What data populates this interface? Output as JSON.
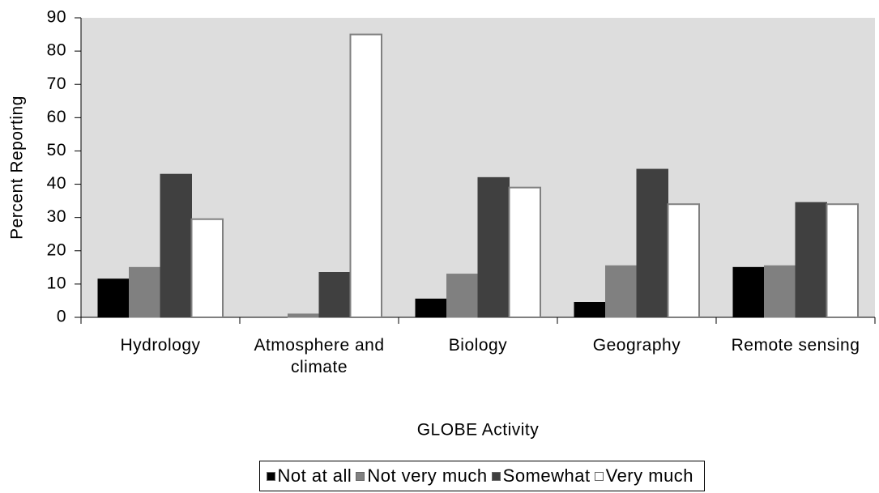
{
  "chart_data": {
    "type": "bar",
    "x_label": "GLOBE Activity",
    "y_label": "Percent Reporting",
    "categories": [
      "Hydrology",
      "Atmosphere and climate",
      "Biology",
      "Geography",
      "Remote sensing"
    ],
    "series": [
      {
        "name": "Not at all",
        "color": "#000000",
        "values": [
          11.5,
          0,
          5.5,
          4.5,
          15
        ]
      },
      {
        "name": "Not very much",
        "color": "#808080",
        "values": [
          15,
          1,
          13,
          15.5,
          15.5
        ]
      },
      {
        "name": "Somewhat",
        "color": "#404040",
        "values": [
          43,
          13.5,
          42,
          44.5,
          34.5
        ]
      },
      {
        "name": "Very much",
        "color": "#ffffff",
        "values": [
          29.5,
          85,
          39,
          34,
          34
        ]
      }
    ],
    "ylim": [
      0,
      90
    ],
    "yticks": [
      0,
      10,
      20,
      30,
      40,
      50,
      60,
      70,
      80,
      90
    ],
    "grid": false,
    "legend": "bottom",
    "plot_background": "#dddddd"
  }
}
